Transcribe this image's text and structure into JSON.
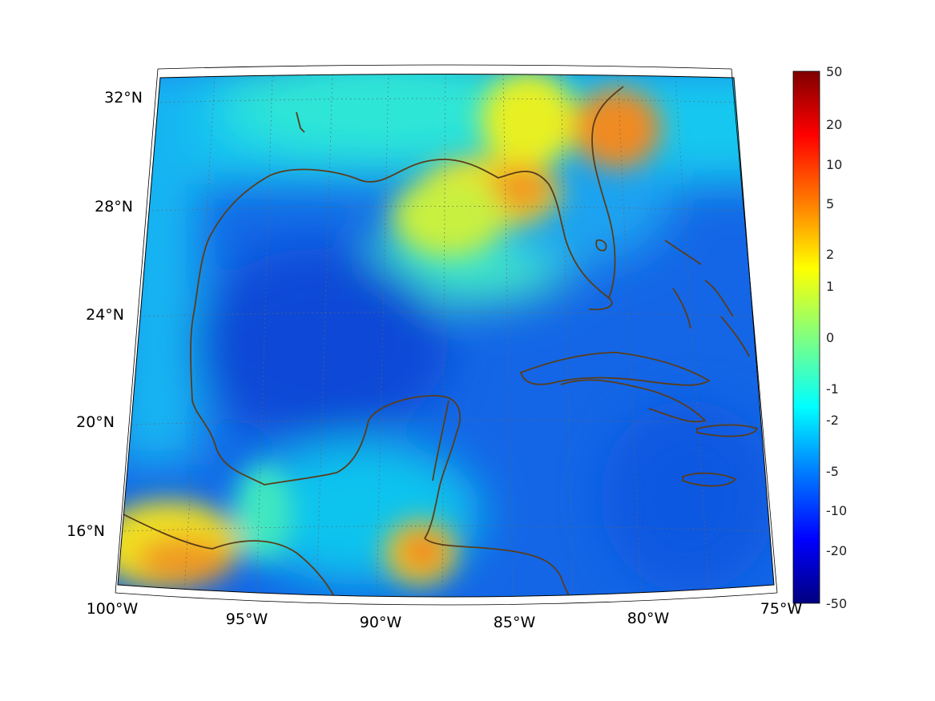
{
  "map": {
    "projection": "lambert-conformal",
    "lon_range": [
      -100,
      -75
    ],
    "lat_range": [
      14,
      33
    ],
    "graticule_lines": "dotted",
    "coastline_color": "#5a3d1a",
    "field_colormap": "jet",
    "lat_labels": [
      "32°N",
      "28°N",
      "24°N",
      "20°N",
      "16°N"
    ],
    "lon_labels": [
      "100°W",
      "95°W",
      "90°W",
      "85°W",
      "80°W",
      "75°W"
    ]
  },
  "colorbar": {
    "position": "right",
    "ticks": [
      "50",
      "20",
      "10",
      "5",
      "2",
      "1",
      "0",
      "-1",
      "-2",
      "-5",
      "-10",
      "-20",
      "-50"
    ],
    "colors_top_to_bottom": [
      "#800000",
      "#ff0000",
      "#ff8000",
      "#ffff00",
      "#80ff80",
      "#00ffff",
      "#0080ff",
      "#0000ff",
      "#000080"
    ]
  }
}
